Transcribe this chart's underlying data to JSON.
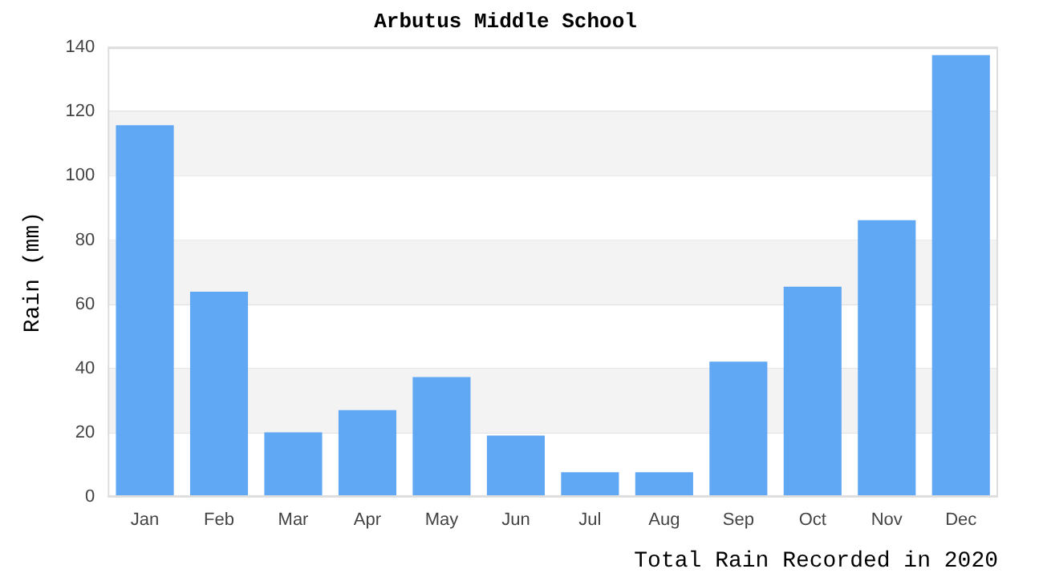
{
  "chart_data": {
    "type": "bar",
    "title": "Arbutus Middle School",
    "xlabel": "Total Rain Recorded in 2020",
    "ylabel": "Rain (mm)",
    "categories": [
      "Jan",
      "Feb",
      "Mar",
      "Apr",
      "May",
      "Jun",
      "Jul",
      "Aug",
      "Sep",
      "Oct",
      "Nov",
      "Dec"
    ],
    "values": [
      115.8,
      63.9,
      20.1,
      27.0,
      37.3,
      19.1,
      7.7,
      7.7,
      42.1,
      65.5,
      86.2,
      137.6
    ],
    "color": "#60a7f4",
    "ylim": [
      0,
      140
    ],
    "yticks": [
      0,
      20,
      40,
      60,
      80,
      100,
      120,
      140
    ],
    "bands": [
      {
        "axis": "y",
        "from": 20,
        "to": 40,
        "color": "#f3f3f3"
      },
      {
        "axis": "y",
        "from": 60,
        "to": 80,
        "color": "#f3f3f3"
      },
      {
        "axis": "y",
        "from": 100,
        "to": 120,
        "color": "#f3f3f3"
      }
    ],
    "grid": "y",
    "legend": false
  }
}
